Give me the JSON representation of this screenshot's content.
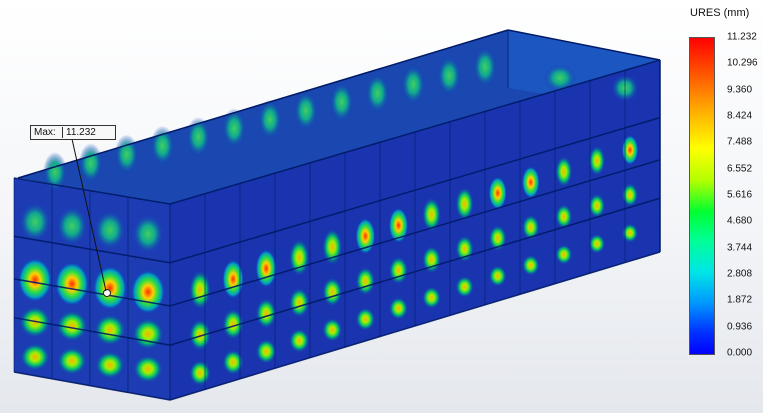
{
  "legend": {
    "title": "URES (mm)",
    "ticks": [
      "11.232",
      "10.296",
      "9.360",
      "8.424",
      "7.488",
      "6.552",
      "5.616",
      "4.680",
      "3.744",
      "2.808",
      "1.872",
      "0.936",
      "0.000"
    ]
  },
  "probe": {
    "label": "Max:",
    "value": "11.232"
  },
  "colors": {
    "low": "#0000ff",
    "mid": "#00ff32",
    "high": "#ff0000",
    "mesh": "#001a66"
  }
}
